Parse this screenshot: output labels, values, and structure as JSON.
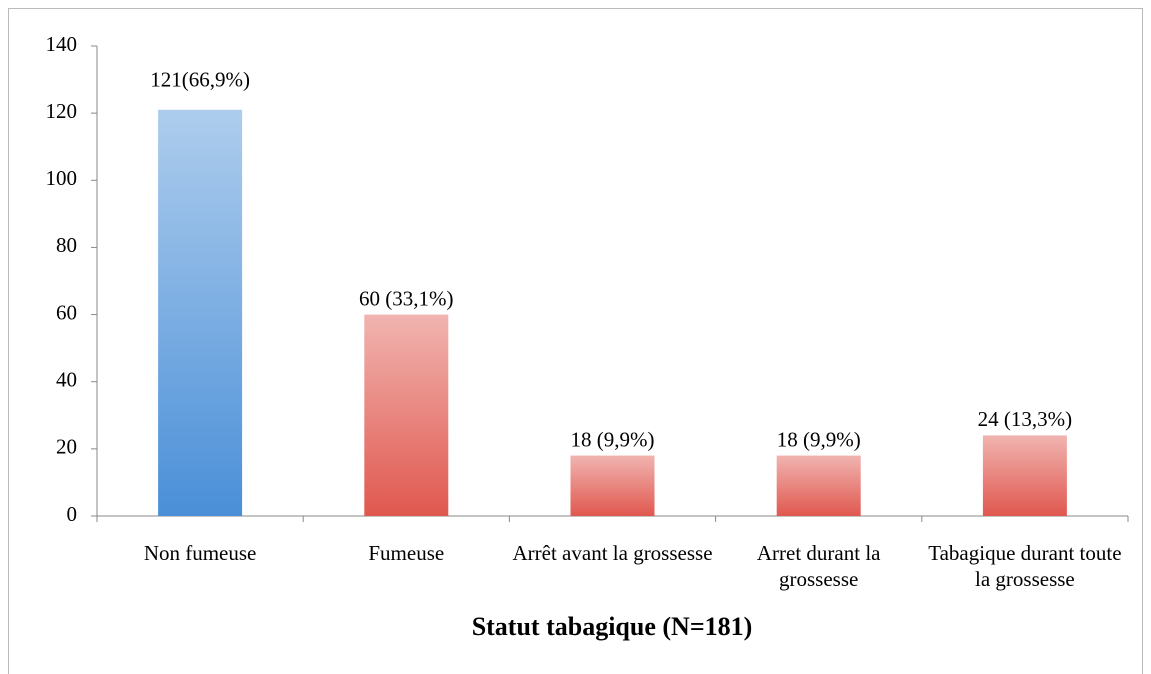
{
  "chart_data": {
    "type": "bar",
    "x_label": "Statut tabagique (N=181)",
    "categories": [
      "Non fumeuse",
      "Fumeuse",
      "Arrêt avant la grossesse",
      "Arret durant la grossesse",
      "Tabagique durant toute la grossesse"
    ],
    "values": [
      121,
      60,
      18,
      18,
      24
    ],
    "value_labels": [
      "121(66,9%)",
      "60 (33,1%)",
      "18 (9,9%)",
      "18 (9,9%)",
      "24 (13,3%)"
    ],
    "colors": [
      "#4a8fd8",
      "#e0584f",
      "#e0584f",
      "#e0584f",
      "#e0584f"
    ],
    "ylim": [
      0,
      140
    ],
    "yticks": [
      0,
      20,
      40,
      60,
      80,
      100,
      120,
      140
    ],
    "grid": false
  }
}
